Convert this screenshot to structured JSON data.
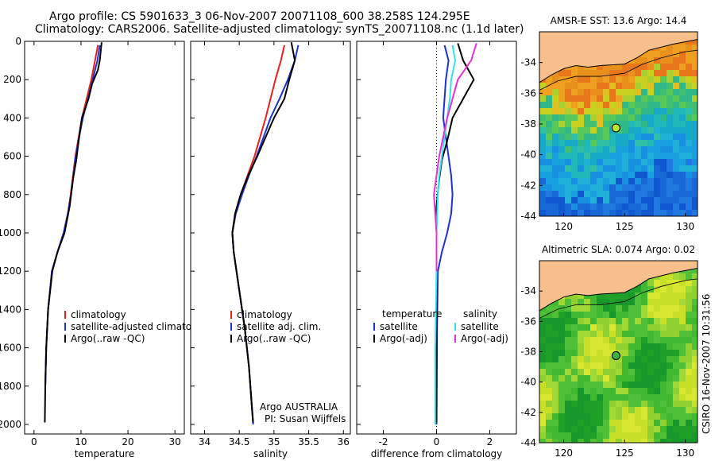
{
  "titles": {
    "line1": "Argo profile: CS 5901633_3 06-Nov-2007 20071108_600 38.258S 124.295E",
    "line2": "Climatology: CARS2006. Satellite-adjusted climatology: synTS_20071108.nc (1.1d later)"
  },
  "colors": {
    "climatology": "#e8201c",
    "satellite": "#1a33d6",
    "argo": "#000000",
    "argo_salinity": "#e830d6",
    "sat_salinity": "#2ee6ee",
    "land": "#f6bf8c"
  },
  "chart_data": [
    {
      "type": "line",
      "xlabel": "temperature",
      "ylabel": "",
      "xlim": [
        -2,
        32
      ],
      "ylim": [
        2050,
        0
      ],
      "xticks": [
        "0",
        "10",
        "20",
        "30"
      ],
      "xtick_values": [
        0,
        10,
        20,
        30
      ],
      "yticks": [
        "0",
        "200",
        "400",
        "600",
        "800",
        "1000",
        "1200",
        "1400",
        "1600",
        "1800",
        "2000"
      ],
      "ytick_values": [
        0,
        200,
        400,
        600,
        800,
        1000,
        1200,
        1400,
        1600,
        1800,
        2000
      ],
      "legend": [
        "climatology",
        "satellite-adjusted climatology",
        "Argo(..raw -QC)"
      ],
      "legend_placement": "lower-right",
      "series": [
        {
          "name": "climatology",
          "x": [
            13.6,
            13.0,
            12.2,
            11.2,
            10.2,
            9.5,
            8.8,
            8.3,
            7.8,
            7.2,
            6.3,
            5.0,
            3.8,
            3.0,
            2.6,
            2.4
          ],
          "y": [
            20,
            100,
            200,
            300,
            400,
            500,
            600,
            700,
            800,
            900,
            1000,
            1100,
            1200,
            1400,
            1600,
            1800
          ]
        },
        {
          "name": "satellite-adjusted climatology",
          "x": [
            14.0,
            13.5,
            12.5,
            11.5,
            10.4,
            9.6,
            8.9,
            8.4,
            7.9,
            7.2,
            6.3,
            5.0,
            3.8,
            3.0,
            2.6,
            2.4
          ],
          "y": [
            20,
            100,
            200,
            300,
            400,
            500,
            600,
            700,
            800,
            900,
            1000,
            1100,
            1200,
            1400,
            1600,
            1800
          ]
        },
        {
          "name": "Argo(..raw -QC)",
          "x": [
            14.4,
            14.0,
            13.6,
            12.4,
            11.6,
            10.2,
            9.5,
            9.0,
            8.3,
            7.6,
            6.5,
            5.0,
            3.9,
            3.0,
            2.6,
            2.4,
            2.3
          ],
          "y": [
            5,
            100,
            150,
            220,
            300,
            400,
            520,
            620,
            720,
            860,
            1000,
            1100,
            1200,
            1400,
            1600,
            1800,
            1990
          ]
        }
      ]
    },
    {
      "type": "line",
      "xlabel": "salinity",
      "ylabel": "",
      "xlim": [
        33.8,
        36.1
      ],
      "ylim": [
        2050,
        0
      ],
      "xticks": [
        "34",
        "34.5",
        "35",
        "35.5",
        "36"
      ],
      "xtick_values": [
        34,
        34.5,
        35,
        35.5,
        36
      ],
      "legend": [
        "climatology",
        "satellite adj. clim.",
        "Argo(..raw -QC)"
      ],
      "legend_placement": "lower-right",
      "annotations": [
        "Argo AUSTRALIA",
        "PI: Susan Wijffels"
      ],
      "series": [
        {
          "name": "climatology",
          "x": [
            35.15,
            35.1,
            35.02,
            34.95,
            34.88,
            34.8,
            34.72,
            34.62,
            34.52,
            34.44,
            34.4,
            34.42,
            34.5,
            34.58,
            34.64,
            34.68,
            34.7
          ],
          "y": [
            20,
            100,
            200,
            300,
            400,
            500,
            600,
            700,
            800,
            900,
            1000,
            1100,
            1300,
            1500,
            1700,
            1900,
            2000
          ]
        },
        {
          "name": "satellite adj. clim.",
          "x": [
            35.35,
            35.3,
            35.2,
            35.08,
            34.95,
            34.85,
            34.75,
            34.64,
            34.54,
            34.45,
            34.4,
            34.42,
            34.5,
            34.58,
            34.64,
            34.68,
            34.7
          ],
          "y": [
            20,
            100,
            200,
            300,
            400,
            500,
            600,
            700,
            800,
            900,
            1000,
            1100,
            1300,
            1500,
            1700,
            1900,
            2000
          ]
        },
        {
          "name": "Argo(..raw -QC)",
          "x": [
            35.25,
            35.3,
            35.22,
            35.15,
            35.0,
            34.88,
            34.76,
            34.63,
            34.52,
            34.44,
            34.4,
            34.42,
            34.5,
            34.58,
            34.64,
            34.68,
            34.7
          ],
          "y": [
            5,
            100,
            200,
            300,
            400,
            500,
            600,
            700,
            800,
            900,
            1000,
            1100,
            1300,
            1500,
            1700,
            1900,
            1990
          ]
        }
      ]
    },
    {
      "type": "line",
      "xlabel": "difference from climatology",
      "ylabel": "",
      "xlim": [
        -3,
        3
      ],
      "ylim": [
        2050,
        0
      ],
      "xticks": [
        "-2",
        "0",
        "2"
      ],
      "xtick_values": [
        -2,
        0,
        2
      ],
      "legend_groups": [
        {
          "heading": "temperature",
          "items": [
            "satellite",
            "Argo(-adj)"
          ]
        },
        {
          "heading": "salinity",
          "items": [
            "satellite",
            "Argo(-adj)"
          ]
        }
      ],
      "legend_placement": "lower-center",
      "series": [
        {
          "name": "temperature satellite",
          "x": [
            0.3,
            0.45,
            0.35,
            0.3,
            0.25,
            0.35,
            0.45,
            0.55,
            0.6,
            0.55,
            0.4,
            0.2,
            0.05,
            0.02,
            0.0
          ],
          "y": [
            20,
            100,
            200,
            300,
            400,
            500,
            600,
            700,
            800,
            900,
            1000,
            1100,
            1200,
            1500,
            2000
          ]
        },
        {
          "name": "temperature Argo(-adj)",
          "x": [
            0.8,
            1.0,
            1.4,
            1.0,
            0.6,
            0.4,
            0.2,
            0.1,
            0.0,
            0.0,
            0.0,
            0.0,
            0.0
          ],
          "y": [
            10,
            100,
            200,
            300,
            400,
            520,
            620,
            720,
            860,
            1000,
            1200,
            1600,
            1990
          ]
        },
        {
          "name": "salinity satellite",
          "x": [
            0.6,
            0.7,
            0.55,
            0.5,
            0.4,
            0.3,
            0.2,
            0.1,
            0.05,
            0.0,
            0.0,
            -0.05,
            -0.05
          ],
          "y": [
            20,
            100,
            200,
            300,
            400,
            500,
            600,
            700,
            800,
            1000,
            1200,
            1600,
            2000
          ]
        },
        {
          "name": "salinity Argo(-adj)",
          "x": [
            1.5,
            1.3,
            0.8,
            0.6,
            0.4,
            0.25,
            0.1,
            0.0,
            -0.1,
            -0.05,
            0.0,
            0.0
          ],
          "y": [
            10,
            100,
            200,
            300,
            400,
            500,
            600,
            700,
            800,
            900,
            1000,
            1200
          ]
        }
      ]
    },
    {
      "type": "heatmap",
      "title": "AMSR-E SST: 13.6 Argo: 14.4",
      "xlim": [
        118,
        131
      ],
      "ylim": [
        -44,
        -32
      ],
      "xticks": [
        "120",
        "125",
        "130"
      ],
      "xtick_values": [
        120,
        125,
        130
      ],
      "yticks": [
        "-34",
        "-36",
        "-38",
        "-40",
        "-42",
        "-44"
      ],
      "ytick_values": [
        -34,
        -36,
        -38,
        -40,
        -42,
        -44
      ],
      "marker": {
        "lon": 124.295,
        "lat": -38.258
      }
    },
    {
      "type": "heatmap",
      "title": "Altimetric SLA: 0.074 Argo: 0.02",
      "xlim": [
        118,
        131
      ],
      "ylim": [
        -44,
        -32
      ],
      "xticks": [
        "120",
        "125",
        "130"
      ],
      "xtick_values": [
        120,
        125,
        130
      ],
      "yticks": [
        "-34",
        "-36",
        "-38",
        "-40",
        "-42",
        "-44"
      ],
      "ytick_values": [
        -34,
        -36,
        -38,
        -40,
        -42,
        -44
      ],
      "marker": {
        "lon": 124.295,
        "lat": -38.258
      }
    }
  ],
  "credit": "CSIRO 16-Nov-2007 10:31:56"
}
